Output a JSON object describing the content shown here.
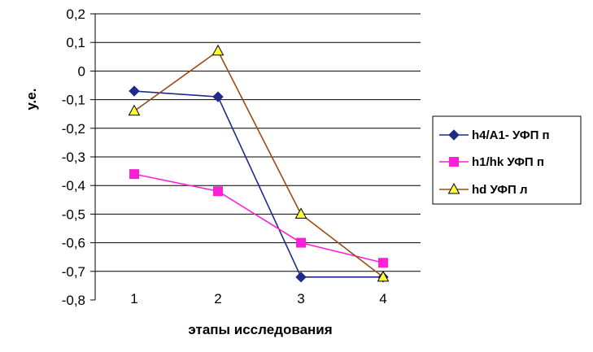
{
  "chart_data": {
    "type": "line",
    "title": "",
    "xlabel": "этапы исследования",
    "ylabel": "у.е.",
    "categories": [
      "1",
      "2",
      "3",
      "4"
    ],
    "ylim": [
      -0.8,
      0.2
    ],
    "yticks": [
      "0,2",
      "0,1",
      "0",
      "-0,1",
      "-0,2",
      "-0,3",
      "-0,4",
      "-0,5",
      "-0,6",
      "-0,7",
      "-0,8"
    ],
    "grid": true,
    "legend_position": "right",
    "series": [
      {
        "name": "h4/A1- УФП п",
        "values": [
          -0.07,
          -0.09,
          -0.72,
          -0.72
        ],
        "color": "#1f2a8a",
        "marker": "diamond"
      },
      {
        "name": "h1/hk УФП п",
        "values": [
          -0.36,
          -0.42,
          -0.6,
          -0.67
        ],
        "color": "#ff1fd6",
        "marker": "square"
      },
      {
        "name": "hd УФП л",
        "values": [
          -0.14,
          0.07,
          -0.5,
          -0.72
        ],
        "color": "#9a4b14",
        "marker": "triangle"
      }
    ]
  }
}
